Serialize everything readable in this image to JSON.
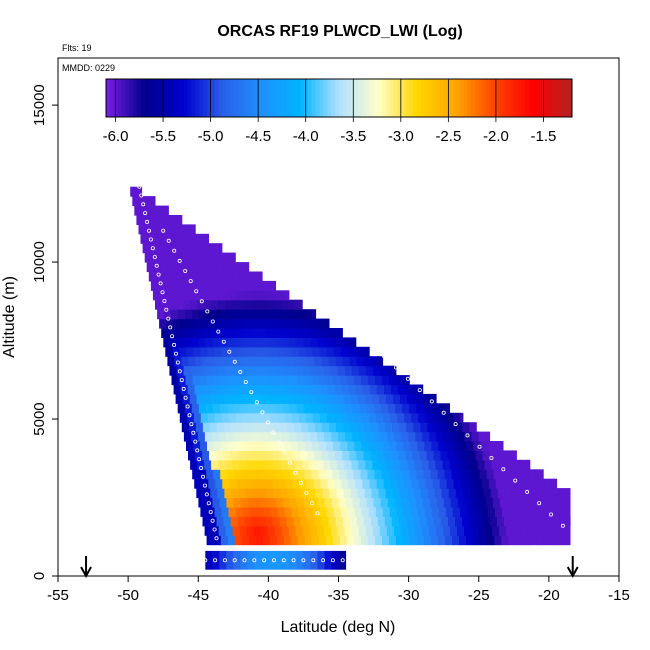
{
  "chart_data": {
    "type": "heatmap",
    "title": "ORCAS RF19 PLWCD_LWI (Log)",
    "annotations": {
      "flights": "Flts: 19",
      "date": "MMDD: 0229"
    },
    "xlabel": "Latitude (deg N)",
    "ylabel": "Altitude (m)",
    "xlim": [
      -55,
      -15
    ],
    "ylim": [
      0,
      16500
    ],
    "x_ticks": [
      -55,
      -50,
      -45,
      -40,
      -35,
      -30,
      -25,
      -20,
      -15
    ],
    "y_ticks": [
      0,
      5000,
      10000,
      15000
    ],
    "grid": false,
    "colorbar": {
      "ticks": [
        -6.0,
        -5.5,
        -5.0,
        -4.5,
        -4.0,
        -3.5,
        -3.0,
        -2.5,
        -2.0,
        -1.5
      ],
      "tick_labels": [
        "-6.0",
        "-5.5",
        "-5.0",
        "-4.5",
        "-4.0",
        "-3.5",
        "-3.0",
        "-2.5",
        "-2.0",
        "-1.5"
      ],
      "range": [
        -6.1,
        -1.2
      ],
      "placement": "top-inside",
      "colors": [
        "#7b1fe6",
        "#00008b",
        "#0000cd",
        "#2a5fe8",
        "#1e90ff",
        "#00b4ff",
        "#b0e0ff",
        "#ffffcc",
        "#ffd700",
        "#ffa500",
        "#ff4500",
        "#ff0000",
        "#b22222"
      ]
    },
    "arrows_at_latitude": [
      -53,
      -18.3
    ],
    "region_approx": {
      "top_edge": {
        "lat_start": -50,
        "lat_end": -18.5,
        "alt_start": 12400,
        "alt_end": 2500
      },
      "left_edge": {
        "lat_top": -50,
        "lat_bottom": -44.5,
        "alt_top": 12400,
        "alt_bottom": 1200
      },
      "base_alt": 1000,
      "low_level_leg": {
        "lat_start": -44.5,
        "lat_end": -34.5,
        "alt": 500
      },
      "max_log_value": -1.7,
      "max_location": {
        "lat": -41,
        "alt": 1200
      }
    }
  }
}
